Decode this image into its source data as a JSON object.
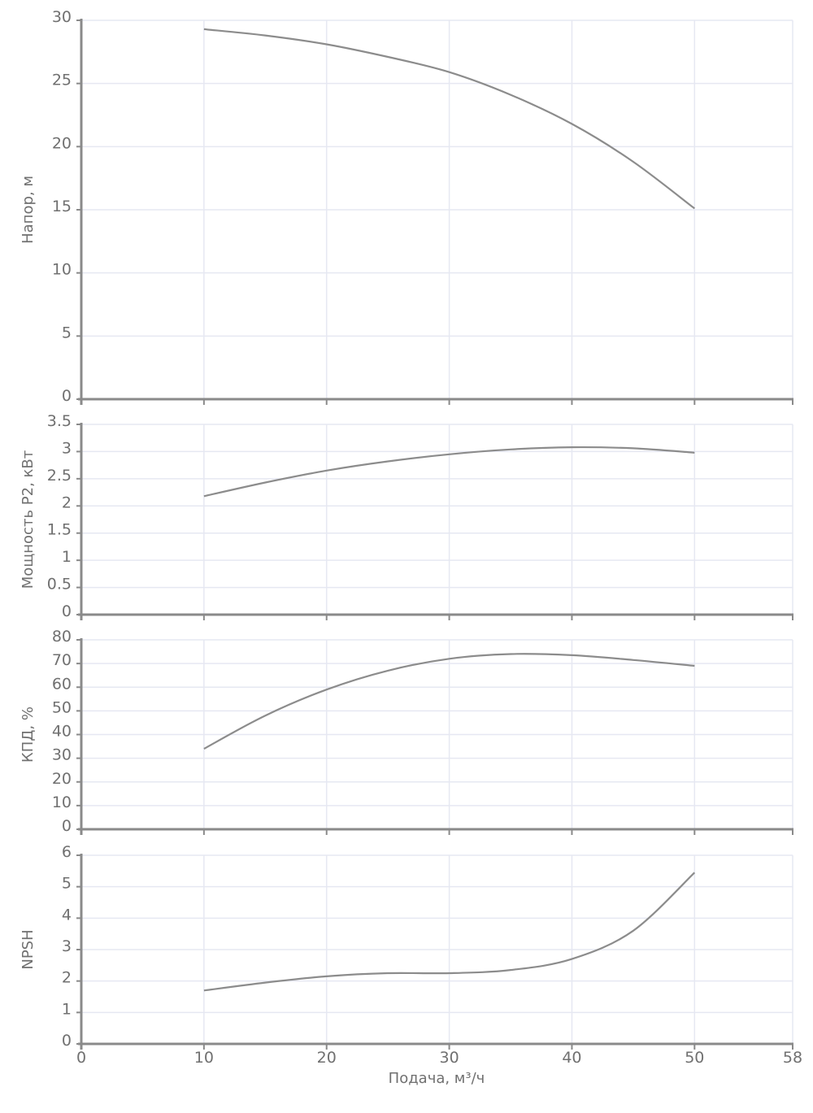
{
  "chart_data": [
    {
      "type": "line",
      "title": "",
      "xlabel": "Подача, м³/ч",
      "ylabel": "Напор, м",
      "xlim": [
        0,
        58
      ],
      "ylim": [
        0,
        30
      ],
      "yticks": [
        0,
        5,
        10,
        15,
        20,
        25,
        30
      ],
      "xticks": [
        0,
        10,
        20,
        30,
        40,
        50,
        58
      ],
      "grid": true,
      "series": [
        {
          "name": "Напор",
          "x": [
            10,
            15,
            20,
            25,
            30,
            35,
            40,
            45,
            50
          ],
          "values": [
            29.3,
            28.8,
            28.1,
            27.1,
            25.9,
            24.1,
            21.8,
            18.8,
            15.1
          ]
        }
      ]
    },
    {
      "type": "line",
      "title": "",
      "xlabel": "Подача, м³/ч",
      "ylabel": "Мощность P2, кВт",
      "xlim": [
        0,
        58
      ],
      "ylim": [
        0,
        3.5
      ],
      "yticks": [
        0,
        0.5,
        1,
        1.5,
        2,
        2.5,
        3,
        3.5
      ],
      "xticks": [
        0,
        10,
        20,
        30,
        40,
        50,
        58
      ],
      "grid": true,
      "series": [
        {
          "name": "Мощность P2",
          "x": [
            10,
            15,
            20,
            25,
            30,
            35,
            40,
            45,
            50
          ],
          "values": [
            2.18,
            2.43,
            2.65,
            2.82,
            2.95,
            3.04,
            3.08,
            3.06,
            2.98
          ]
        }
      ]
    },
    {
      "type": "line",
      "title": "",
      "xlabel": "Подача, м³/ч",
      "ylabel": "КПД, %",
      "xlim": [
        0,
        58
      ],
      "ylim": [
        0,
        80
      ],
      "yticks": [
        0,
        10,
        20,
        30,
        40,
        50,
        60,
        70,
        80
      ],
      "xticks": [
        0,
        10,
        20,
        30,
        40,
        50,
        58
      ],
      "grid": true,
      "series": [
        {
          "name": "КПД",
          "x": [
            10,
            15,
            20,
            25,
            30,
            35,
            40,
            45,
            50
          ],
          "values": [
            34,
            48,
            59,
            67,
            72,
            74,
            73.5,
            71.5,
            69
          ]
        }
      ]
    },
    {
      "type": "line",
      "title": "",
      "xlabel": "Подача, м³/ч",
      "ylabel": "NPSH",
      "xlim": [
        0,
        58
      ],
      "ylim": [
        0,
        6
      ],
      "yticks": [
        0,
        1,
        2,
        3,
        4,
        5,
        6
      ],
      "xticks": [
        0,
        10,
        20,
        30,
        40,
        50,
        58
      ],
      "grid": true,
      "series": [
        {
          "name": "NPSH",
          "x": [
            10,
            15,
            20,
            25,
            30,
            35,
            40,
            45,
            50
          ],
          "values": [
            1.7,
            1.95,
            2.15,
            2.25,
            2.25,
            2.35,
            2.7,
            3.6,
            5.45
          ]
        }
      ]
    }
  ],
  "x_axis": {
    "title": "Подача, м³/ч",
    "ticks": [
      "0",
      "10",
      "20",
      "30",
      "40",
      "50",
      "58"
    ]
  },
  "panels": [
    {
      "id": "head",
      "ylabel": "Напор, м",
      "yticks": [
        "0",
        "5",
        "10",
        "15",
        "20",
        "25",
        "30"
      ]
    },
    {
      "id": "power",
      "ylabel": "Мощность P2, кВт",
      "yticks": [
        "0",
        "0.5",
        "1",
        "1.5",
        "2",
        "2.5",
        "3",
        "3.5"
      ]
    },
    {
      "id": "efficiency",
      "ylabel": "КПД, %",
      "yticks": [
        "0",
        "10",
        "20",
        "30",
        "40",
        "50",
        "60",
        "70",
        "80"
      ]
    },
    {
      "id": "npsh",
      "ylabel": "NPSH",
      "yticks": [
        "0",
        "1",
        "2",
        "3",
        "4",
        "5",
        "6"
      ]
    }
  ],
  "colors": {
    "curve": "#8c8c8c",
    "axis": "#8a8a8a",
    "grid": "#e6e8f2",
    "text": "#707070"
  }
}
